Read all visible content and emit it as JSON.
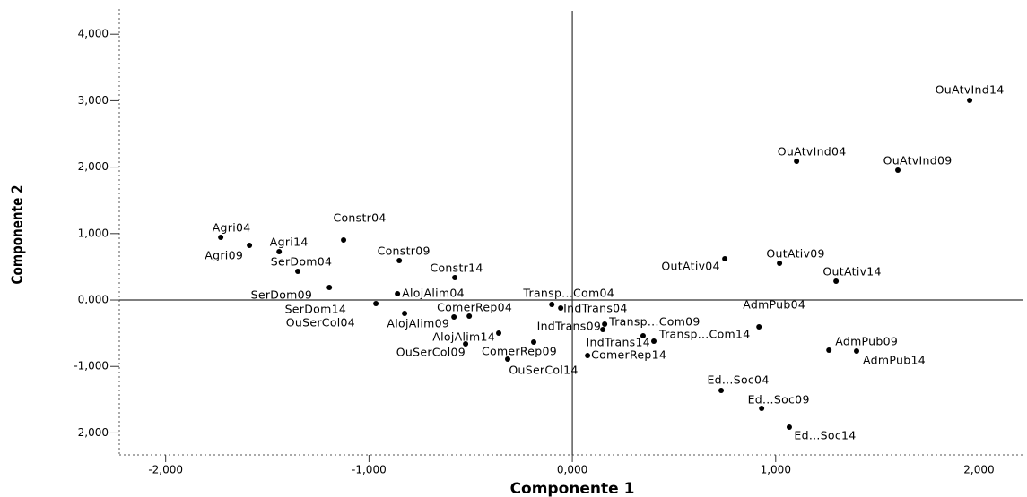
{
  "chart_data": {
    "type": "scatter",
    "xlabel": "Componente 1",
    "ylabel": "Componente 2",
    "color": "#000000",
    "xlim": [
      -2.228,
      2.214
    ],
    "ylim": [
      -2.331,
      4.38
    ],
    "xticks": [
      {
        "value": -2,
        "label": "-2,000"
      },
      {
        "value": -1,
        "label": "-1,000"
      },
      {
        "value": 0,
        "label": "0,000"
      },
      {
        "value": 1,
        "label": "1,000"
      },
      {
        "value": 2,
        "label": "2,000"
      }
    ],
    "yticks": [
      {
        "value": -2,
        "label": "-2,000"
      },
      {
        "value": -1,
        "label": "-1,000"
      },
      {
        "value": 0,
        "label": "0,000"
      },
      {
        "value": 1,
        "label": "1,000"
      },
      {
        "value": 2,
        "label": "2,000"
      },
      {
        "value": 3,
        "label": "3,000"
      },
      {
        "value": 4,
        "label": "4,000"
      }
    ],
    "point_labels": [
      "OuAtvInd14",
      "OuAtvInd04",
      "OuAtvInd09",
      "Agri04",
      "Agri14",
      "Agri09",
      "Constr04",
      "Constr09",
      "SerDom04",
      "Constr14",
      "SerDom09",
      "SerDom14",
      "AlojAlim04",
      "Transp...Com04",
      "IndTrans04",
      "OuSerCol04",
      "ComerRep04",
      "AlojAlim09",
      "IndTrans09",
      "Transp...Com09",
      "AdmPub04",
      "AlojAlim14",
      "IndTrans14",
      "Transp...Com14",
      "OuSerCol09",
      "ComerRep09",
      "OuSerCol14",
      "ComerRep14",
      "AdmPub09",
      "AdmPub14",
      "Ed...Soc04",
      "Ed...Soc09",
      "Ed...Soc14",
      "OutAtiv04",
      "OutAtiv09",
      "OutAtiv14"
    ],
    "x": [
      1.954,
      1.103,
      1.601,
      -1.729,
      -1.442,
      -1.588,
      -1.125,
      -0.851,
      -1.35,
      -0.578,
      -1.195,
      -0.966,
      -0.86,
      -0.101,
      -0.057,
      -0.825,
      -0.507,
      -0.582,
      0.15,
      0.159,
      0.918,
      -0.362,
      0.401,
      0.348,
      -0.525,
      -0.19,
      -0.318,
      0.075,
      1.262,
      1.398,
      0.732,
      0.931,
      1.067,
      0.75,
      1.019,
      1.297
    ],
    "values": [
      3.005,
      2.089,
      1.954,
      0.943,
      0.728,
      0.822,
      0.903,
      0.593,
      0.431,
      0.337,
      0.189,
      -0.054,
      0.094,
      -0.067,
      -0.121,
      -0.202,
      -0.243,
      -0.256,
      -0.445,
      -0.364,
      -0.404,
      -0.499,
      -0.62,
      -0.539,
      -0.66,
      -0.633,
      -0.889,
      -0.836,
      -0.755,
      -0.768,
      -1.361,
      -1.631,
      -1.914,
      0.62,
      0.553,
      0.283
    ]
  }
}
